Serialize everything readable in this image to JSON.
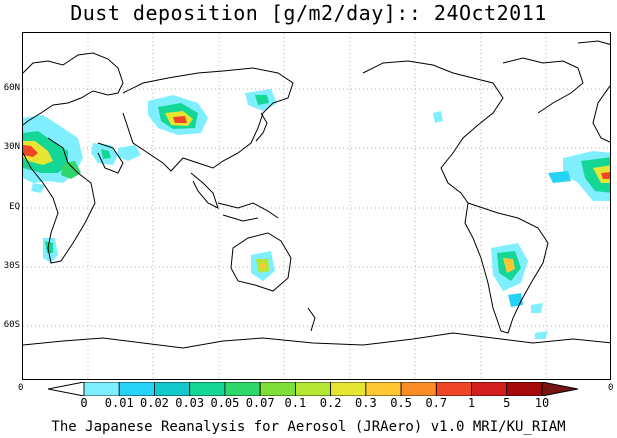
{
  "title": "Dust deposition [g/m2/day]:: 24Oct2011",
  "lat_labels": [
    "60N",
    "30N",
    "EQ",
    "30S",
    "60S"
  ],
  "corner_labels": {
    "left": "0",
    "right": "0"
  },
  "colorbar": {
    "labels": [
      "0",
      "0.01",
      "0.02",
      "0.03",
      "0.05",
      "0.07",
      "0.1",
      "0.2",
      "0.3",
      "0.5",
      "0.7",
      "1",
      "5",
      "10"
    ],
    "colors": [
      "#ffffff",
      "#7fefff",
      "#26d2f6",
      "#12c8c8",
      "#14d796",
      "#2fd76c",
      "#7fde3a",
      "#b4e632",
      "#e6e632",
      "#ffc832",
      "#fa8c28",
      "#f04628",
      "#d21e1e",
      "#a50a0a",
      "#781414"
    ]
  },
  "credit": "The Japanese Reanalysis for Aerosol (JRAero) v1.0 MRI/KU_RIAM"
}
